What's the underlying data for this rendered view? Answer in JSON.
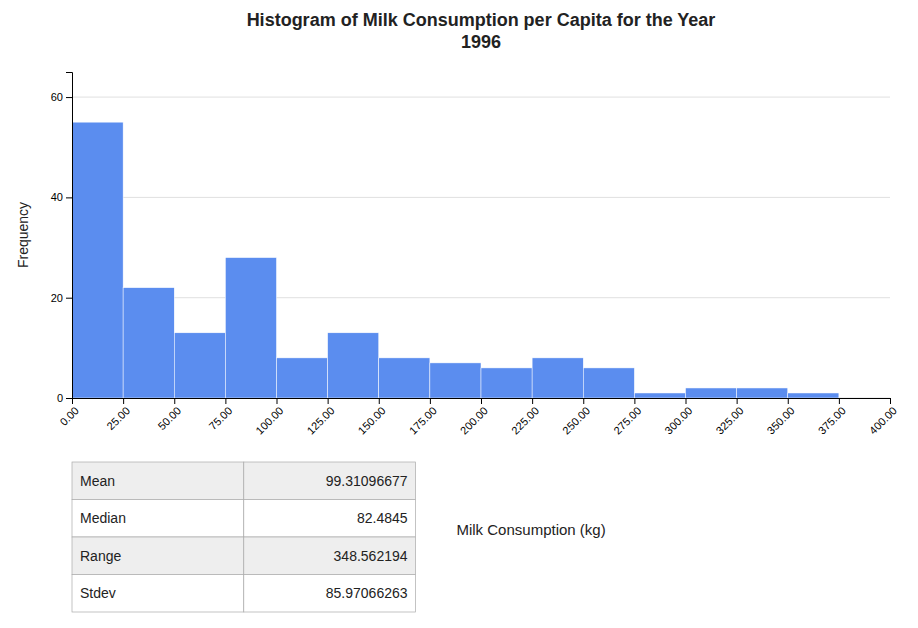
{
  "chart_data": {
    "type": "histogram",
    "title": "Histogram of Milk Consumption per Capita for the Year\n1996",
    "ylabel": "Frequency",
    "xlabel": "Milk Consumption (kg)",
    "color": "#5b8def",
    "bins": [
      0,
      25,
      50,
      75,
      100,
      125,
      150,
      175,
      200,
      225,
      250,
      275,
      300,
      325,
      350,
      375,
      400
    ],
    "values": [
      55,
      22,
      13,
      28,
      8,
      13,
      8,
      7,
      6,
      8,
      6,
      1,
      2,
      2,
      1,
      0
    ],
    "xlim": [
      0,
      400
    ],
    "xticks": [
      {
        "value": 0,
        "label": "0.00"
      },
      {
        "value": 25,
        "label": "25.00"
      },
      {
        "value": 50,
        "label": "50.00"
      },
      {
        "value": 75,
        "label": "75.00"
      },
      {
        "value": 100,
        "label": "100.00"
      },
      {
        "value": 125,
        "label": "125.00"
      },
      {
        "value": 150,
        "label": "150.00"
      },
      {
        "value": 175,
        "label": "175.00"
      },
      {
        "value": 200,
        "label": "200.00"
      },
      {
        "value": 225,
        "label": "225.00"
      },
      {
        "value": 250,
        "label": "250.00"
      },
      {
        "value": 275,
        "label": "275.00"
      },
      {
        "value": 300,
        "label": "300.00"
      },
      {
        "value": 325,
        "label": "325.00"
      },
      {
        "value": 350,
        "label": "350.00"
      },
      {
        "value": 375,
        "label": "375.00"
      },
      {
        "value": 400,
        "label": "400.00"
      }
    ],
    "ylim": [
      0,
      65
    ],
    "yticks": [
      0,
      20,
      40,
      60
    ],
    "grid": true,
    "table": {
      "rows": [
        "Mean",
        "Median",
        "Range",
        "Stdev"
      ],
      "values": [
        "99.31096677",
        "82.4845",
        "348.562194",
        "85.97066263"
      ]
    }
  }
}
